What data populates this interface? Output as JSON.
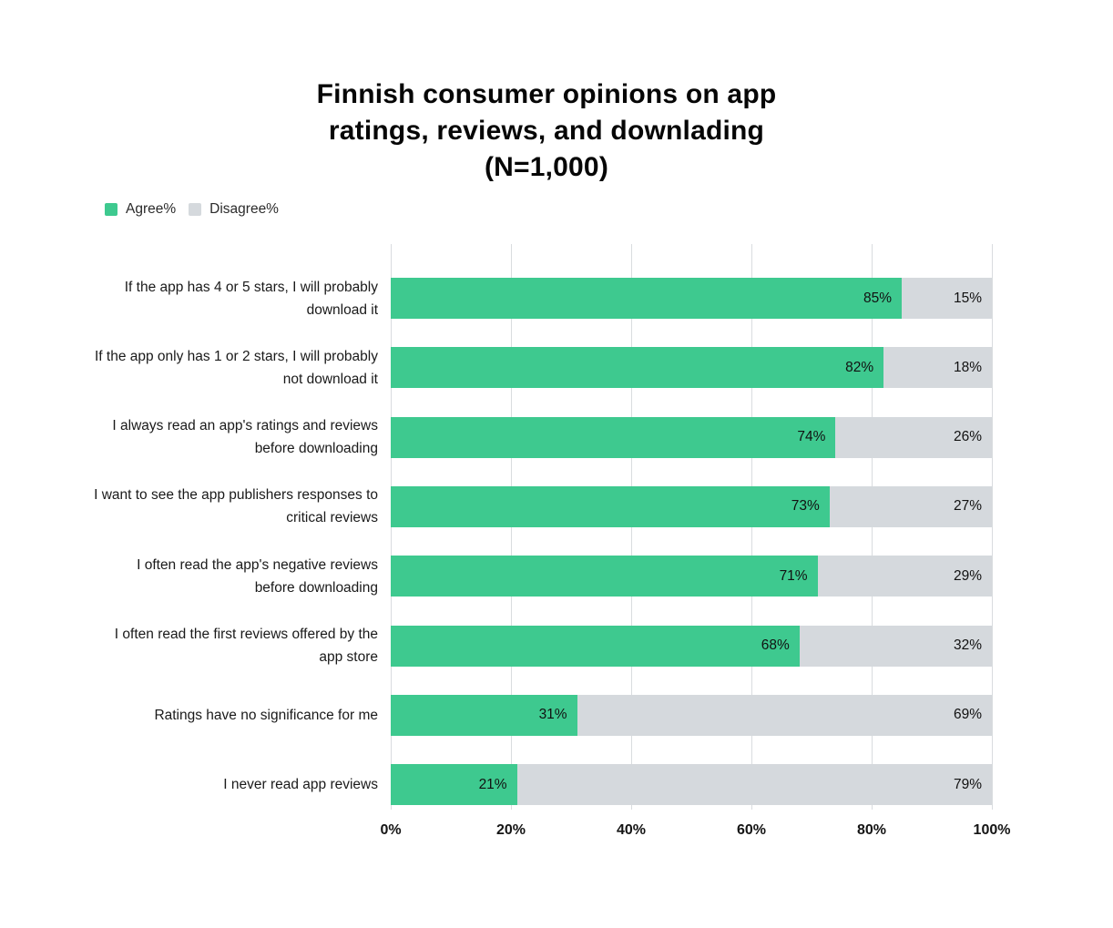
{
  "title": {
    "lines": [
      "Finnish consumer opinions on app",
      "ratings, reviews, and downlading",
      "(N=1,000)"
    ],
    "full": "Finnish consumer opinions on app ratings, reviews, and downlading (N=1,000)"
  },
  "legend": {
    "items": [
      {
        "label": "Agree%",
        "color": "#3ec98f"
      },
      {
        "label": "Disagree%",
        "color": "#d5d9dd"
      }
    ]
  },
  "chart_data": {
    "type": "bar",
    "orientation": "horizontal",
    "stacked": true,
    "title": "Finnish consumer opinions on app ratings, reviews, and downlading (N=1,000)",
    "categories": [
      "If the app has 4 or 5 stars, I will probably download it",
      "If the app only has 1 or 2 stars, I will probably not download it",
      "I always read an app's ratings and reviews before downloading",
      "I want to see the app publishers responses to critical reviews",
      "I often read the app's negative reviews before downloading",
      "I often read the first reviews offered by the app store",
      "Ratings have no significance for me",
      "I never read app reviews"
    ],
    "series": [
      {
        "name": "Agree%",
        "color": "#3ec98f",
        "values": [
          85,
          82,
          74,
          73,
          71,
          68,
          31,
          21
        ]
      },
      {
        "name": "Disagree%",
        "color": "#d5d9dd",
        "values": [
          15,
          18,
          26,
          27,
          29,
          32,
          69,
          79
        ]
      }
    ],
    "value_suffix": "%",
    "xlim": [
      0,
      100
    ],
    "x_tick_values": [
      0,
      20,
      40,
      60,
      80,
      100
    ],
    "x_tick_labels": [
      "0%",
      "20%",
      "40%",
      "60%",
      "80%",
      "100%"
    ],
    "grid": "vertical",
    "gridline_color": "#d9dcdf",
    "legend_position": "top-left",
    "background_color": "#ffffff"
  }
}
